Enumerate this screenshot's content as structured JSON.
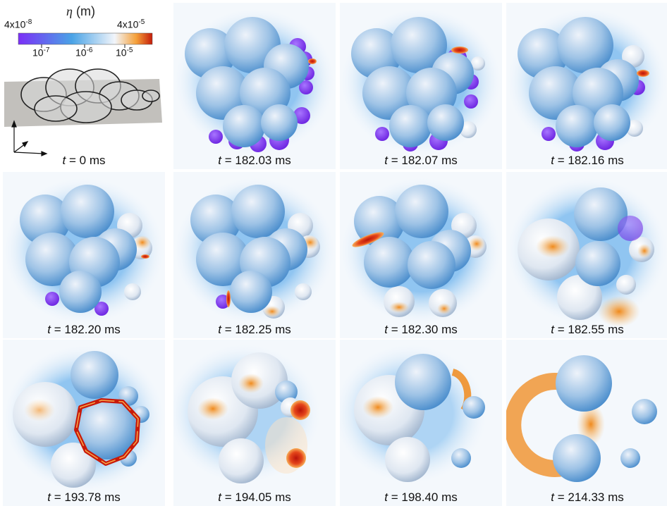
{
  "legend": {
    "symbol": "η",
    "unit": "(m)",
    "min_label": "4x10",
    "min_exp": "-8",
    "max_label": "4x10",
    "max_exp": "-5",
    "ticks": [
      {
        "base": "10",
        "exp": "-7"
      },
      {
        "base": "10",
        "exp": "-6"
      },
      {
        "base": "10",
        "exp": "-5"
      }
    ],
    "colors": [
      "#7b2ff7",
      "#4aa3e6",
      "#f2f5fa",
      "#f5a13a",
      "#c51c0a"
    ]
  },
  "panels": [
    {
      "t_var": "t",
      "eq": " = ",
      "value": "0",
      "unit": " ms"
    },
    {
      "t_var": "t",
      "eq": " = ",
      "value": "182.03",
      "unit": " ms"
    },
    {
      "t_var": "t",
      "eq": " = ",
      "value": "182.07",
      "unit": " ms"
    },
    {
      "t_var": "t",
      "eq": " = ",
      "value": "182.16",
      "unit": " ms"
    },
    {
      "t_var": "t",
      "eq": " = ",
      "value": "182.20",
      "unit": " ms"
    },
    {
      "t_var": "t",
      "eq": " = ",
      "value": "182.25",
      "unit": " ms"
    },
    {
      "t_var": "t",
      "eq": " = ",
      "value": "182.30",
      "unit": " ms"
    },
    {
      "t_var": "t",
      "eq": " = ",
      "value": "182.55",
      "unit": " ms"
    },
    {
      "t_var": "t",
      "eq": " = ",
      "value": "193.78",
      "unit": " ms"
    },
    {
      "t_var": "t",
      "eq": " = ",
      "value": "194.05",
      "unit": " ms"
    },
    {
      "t_var": "t",
      "eq": " = ",
      "value": "198.40",
      "unit": " ms"
    },
    {
      "t_var": "t",
      "eq": " = ",
      "value": "214.33",
      "unit": " ms"
    }
  ]
}
